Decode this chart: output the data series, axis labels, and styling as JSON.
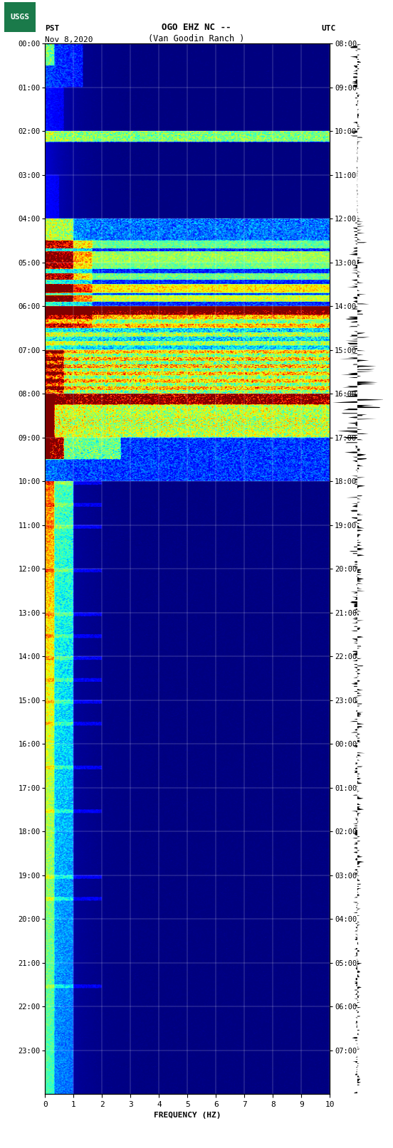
{
  "title_line1": "OGO EHZ NC --",
  "title_line2": "(Van Goodin Ranch )",
  "pst_label": "PST",
  "utc_label": "UTC",
  "date_label": "Nov 8,2020",
  "xlabel": "FREQUENCY (HZ)",
  "freq_min": 0,
  "freq_max": 10,
  "pst_ticks": [
    "00:00",
    "01:00",
    "02:00",
    "03:00",
    "04:00",
    "05:00",
    "06:00",
    "07:00",
    "08:00",
    "09:00",
    "10:00",
    "11:00",
    "12:00",
    "13:00",
    "14:00",
    "15:00",
    "16:00",
    "17:00",
    "18:00",
    "19:00",
    "20:00",
    "21:00",
    "22:00",
    "23:00"
  ],
  "utc_ticks": [
    "08:00",
    "09:00",
    "10:00",
    "11:00",
    "12:00",
    "13:00",
    "14:00",
    "15:00",
    "16:00",
    "17:00",
    "18:00",
    "19:00",
    "20:00",
    "21:00",
    "22:00",
    "23:00",
    "00:00",
    "01:00",
    "02:00",
    "03:00",
    "04:00",
    "05:00",
    "06:00",
    "07:00"
  ],
  "bg_color": "#ffffff",
  "spectrogram_cmap": "jet",
  "logo_color": "#1a7a4a"
}
